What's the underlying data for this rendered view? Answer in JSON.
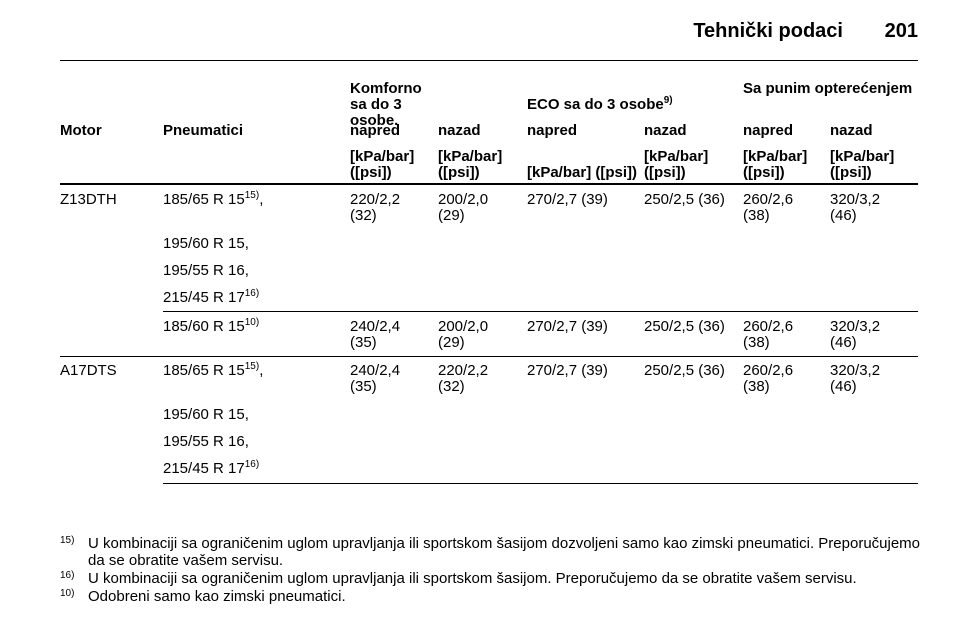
{
  "header": {
    "title": "Tehnički podaci",
    "page": "201"
  },
  "table": {
    "group_headers": [
      {
        "text": "Komforno sa do 3 osobe."
      },
      {
        "text": "ECO sa do 3 osobe",
        "note": "9)"
      },
      {
        "text": "Sa punim opterećenjem"
      }
    ],
    "columns": [
      "Motor",
      "Pneumatici",
      "napred",
      "nazad",
      "napred",
      "nazad",
      "napred",
      "nazad"
    ],
    "units": [
      "[kPa/bar] ([psi])",
      "[kPa/bar] ([psi])",
      "[kPa/bar] ([psi])",
      "[kPa/bar] ([psi])",
      "[kPa/bar] ([psi])",
      "[kPa/bar] ([psi])"
    ],
    "rows": [
      {
        "motor": "Z13DTH",
        "tires": [
          {
            "text": "185/65 R 15",
            "note": "15)",
            "suffix": ","
          },
          {
            "text": "195/60 R 15,"
          },
          {
            "text": "195/55 R 16,"
          },
          {
            "text": "215/45 R 17",
            "note": "16)"
          }
        ],
        "values": [
          "220/2,2 (32)",
          "200/2,0 (29)",
          "270/2,7 (39)",
          "250/2,5 (36)",
          "260/2,6 (38)",
          "320/3,2 (46)"
        ]
      },
      {
        "tires": [
          {
            "text": "185/60 R 15",
            "note": "10)"
          }
        ],
        "values": [
          "240/2,4 (35)",
          "200/2,0 (29)",
          "270/2,7 (39)",
          "250/2,5 (36)",
          "260/2,6 (38)",
          "320/3,2 (46)"
        ]
      },
      {
        "motor": "A17DTS",
        "tires": [
          {
            "text": "185/65 R 15",
            "note": "15)",
            "suffix": ","
          },
          {
            "text": "195/60 R 15,"
          },
          {
            "text": "195/55 R 16,"
          },
          {
            "text": "215/45 R 17",
            "note": "16)"
          }
        ],
        "values": [
          "240/2,4 (35)",
          "220/2,2 (32)",
          "270/2,7 (39)",
          "250/2,5 (36)",
          "260/2,6 (38)",
          "320/3,2 (46)"
        ]
      }
    ]
  },
  "footnotes": [
    {
      "mark": "15)",
      "text": "U kombinaciji sa ograničenim uglom upravljanja ili sportskom šasijom dozvoljeni samo kao zimski pneumatici. Preporučujemo da se obratite vašem servisu."
    },
    {
      "mark": "16)",
      "text": "U kombinaciji sa ograničenim uglom upravljanja ili sportskom šasijom. Preporučujemo da se obratite vašem servisu."
    },
    {
      "mark": "10)",
      "text": "Odobreni samo kao zimski pneumatici."
    }
  ]
}
